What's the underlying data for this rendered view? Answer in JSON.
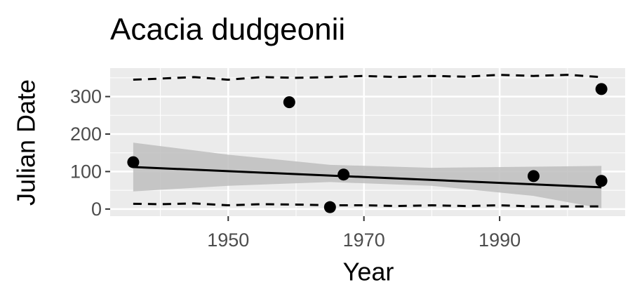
{
  "chart_data": {
    "type": "scatter",
    "title": "Acacia dudgeonii",
    "x_label": "Year",
    "y_label": "Julian Date",
    "xlim": [
      1932.6,
      2008.5
    ],
    "ylim": [
      -19,
      376
    ],
    "xticks": [
      1950,
      1970,
      1990
    ],
    "yticks": [
      0,
      100,
      200,
      300
    ],
    "xminor": [
      1940,
      1960,
      1980,
      2000
    ],
    "yminor": [
      50,
      150,
      250,
      350
    ],
    "grid": true,
    "panel_color": "#ebebeb",
    "points": {
      "x": [
        1936,
        1959,
        1965,
        1967,
        1995,
        2005,
        2005
      ],
      "values": [
        125,
        285,
        5,
        92,
        88,
        320,
        75
      ],
      "color": "#000000"
    },
    "fit": {
      "x": [
        1936,
        2005
      ],
      "values": [
        112,
        58
      ],
      "color": "#000000"
    },
    "ribbon": {
      "x": [
        1936,
        1950,
        1965,
        1980,
        1995,
        2005
      ],
      "upper": [
        177,
        145,
        118,
        110,
        113,
        115
      ],
      "lower": [
        47,
        62,
        72,
        62,
        35,
        2
      ],
      "color": "#bebebe"
    },
    "bounds": [
      {
        "x": [
          1936,
          1940,
          1945,
          1950,
          1955,
          1960,
          1965,
          1970,
          1975,
          1980,
          1985,
          1990,
          1995,
          2000,
          2005
        ],
        "values": [
          345,
          348,
          352,
          345,
          352,
          350,
          352,
          355,
          352,
          355,
          353,
          358,
          355,
          358,
          352
        ],
        "color": "#000000"
      },
      {
        "x": [
          1936,
          1940,
          1945,
          1950,
          1955,
          1960,
          1965,
          1970,
          1975,
          1980,
          1985,
          1990,
          1995,
          2000,
          2005
        ],
        "values": [
          14,
          13,
          15,
          10,
          13,
          12,
          10,
          10,
          8,
          10,
          8,
          10,
          7,
          7,
          7
        ],
        "color": "#000000"
      }
    ]
  }
}
